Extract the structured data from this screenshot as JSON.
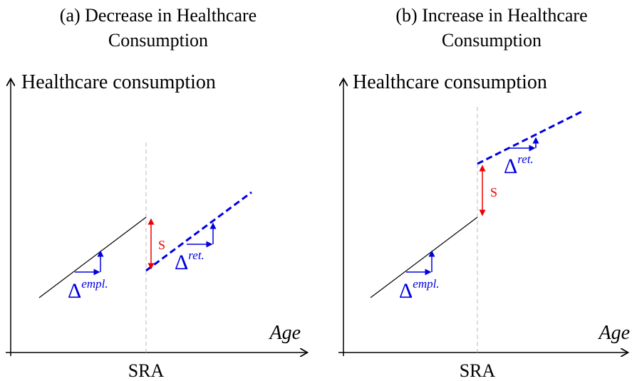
{
  "panels": [
    {
      "title": [
        "(a) Decrease in Healthcare",
        "Consumption"
      ],
      "y_label": "Healthcare consumption",
      "x_label": "Age",
      "x_tick": "SRA",
      "jump_label": "S",
      "delta_employed": {
        "symbol": "Δ",
        "sup": "empl."
      },
      "delta_retired": {
        "symbol": "Δ",
        "sup": "ret."
      }
    },
    {
      "title": [
        "(b) Increase in Healthcare",
        "Consumption"
      ],
      "y_label": "Healthcare consumption",
      "x_label": "Age",
      "x_tick": "SRA",
      "jump_label": "S",
      "delta_employed": {
        "symbol": "Δ",
        "sup": "empl."
      },
      "delta_retired": {
        "symbol": "Δ",
        "sup": "ret."
      }
    }
  ]
}
